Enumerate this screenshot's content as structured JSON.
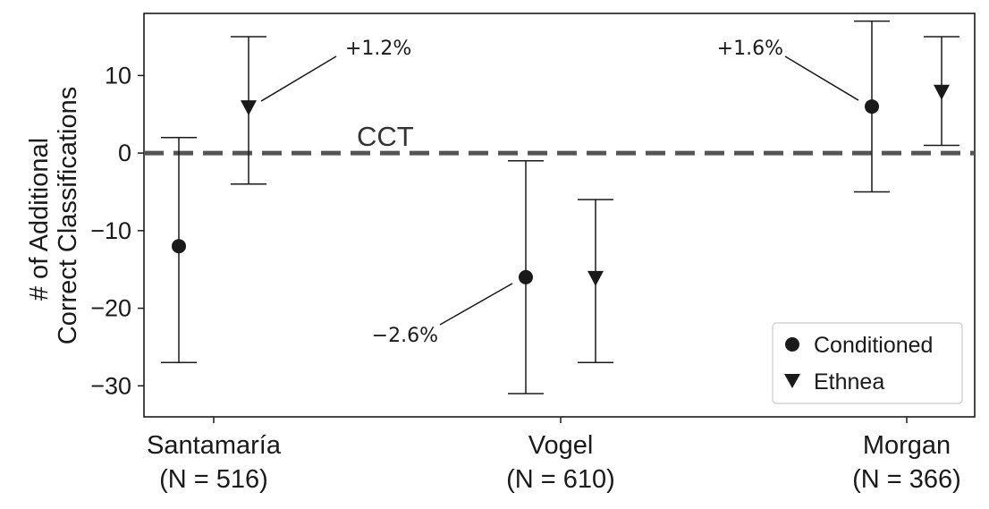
{
  "chart_data": {
    "type": "scatter",
    "ylabel_lines": [
      "# of Additional",
      "Correct Classifications"
    ],
    "ylim": [
      -34,
      18
    ],
    "yticks": [
      -30,
      -20,
      -10,
      0,
      10
    ],
    "ytick_labels": [
      "−30",
      "−20",
      "−10",
      "0",
      "10"
    ],
    "categories": [
      {
        "name": "Santamaría",
        "n_label": "(N = 516)"
      },
      {
        "name": "Vogel",
        "n_label": "(N = 610)"
      },
      {
        "name": "Morgan",
        "n_label": "(N = 366)"
      }
    ],
    "reference_line": {
      "y": 0,
      "label": "CCT"
    },
    "series": [
      {
        "name": "Conditioned",
        "marker": "circle",
        "points": [
          {
            "category": "Santamaría",
            "y": -12,
            "low": -27,
            "high": 2
          },
          {
            "category": "Vogel",
            "y": -16,
            "low": -31,
            "high": -1
          },
          {
            "category": "Morgan",
            "y": 6,
            "low": -5,
            "high": 17
          }
        ]
      },
      {
        "name": "Ethnea",
        "marker": "triangle-down",
        "points": [
          {
            "category": "Santamaría",
            "y": 6,
            "low": -4,
            "high": 15
          },
          {
            "category": "Vogel",
            "y": -16,
            "low": -27,
            "high": -6
          },
          {
            "category": "Morgan",
            "y": 8,
            "low": 1,
            "high": 15
          }
        ]
      }
    ],
    "annotations": [
      {
        "text": "+1.2%",
        "series": "Ethnea",
        "category": "Santamaría"
      },
      {
        "text": "−2.6%",
        "series": "Conditioned",
        "category": "Vogel"
      },
      {
        "text": "+1.6%",
        "series": "Conditioned",
        "category": "Morgan"
      }
    ],
    "legend": {
      "placement": "lower-right",
      "entries": [
        "Conditioned",
        "Ethnea"
      ]
    },
    "grid": false,
    "colors": {
      "marker": "#1a1a1a",
      "reference_line": "#555555",
      "axes": "#1a1a1a",
      "legend_border": "#cccccc"
    }
  }
}
